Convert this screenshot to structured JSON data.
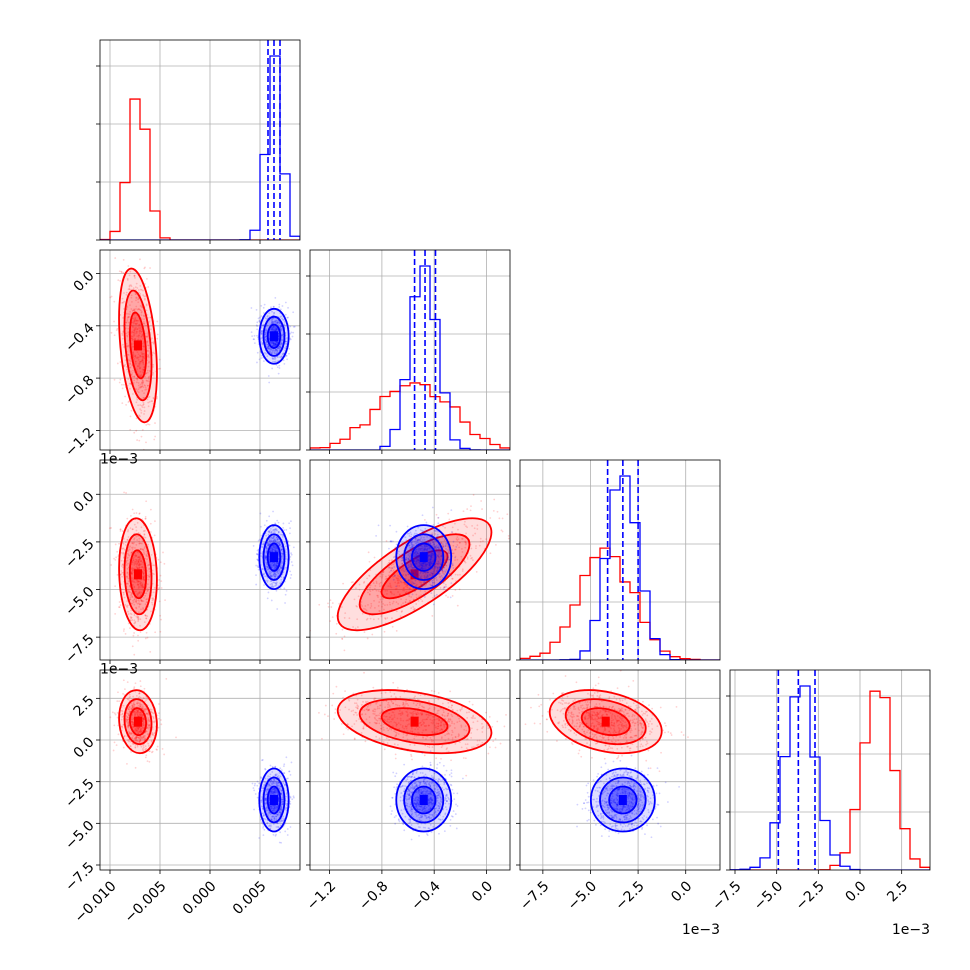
{
  "chart_data": {
    "type": "corner",
    "grid": true,
    "series": [
      {
        "name": "",
        "color": "#ff0000",
        "means": [
          -0.0072,
          -0.00055,
          -0.0042,
          0.0011
        ],
        "sds": [
          0.0009,
          0.00028,
          0.0014,
          0.0009
        ],
        "corr": {
          "1-0": -0.35,
          "2-0": -0.1,
          "2-1": 0.75,
          "3-0": -0.1,
          "3-1": -0.35,
          "3-2": -0.3
        }
      },
      {
        "name": "",
        "color": "#0000ff",
        "means": [
          0.0064,
          -0.00048,
          -0.0033,
          -0.0036
        ],
        "sds": [
          0.0007,
          0.0001,
          0.0008,
          0.0009
        ],
        "corr": {
          "1-0": 0.0,
          "2-0": 0.0,
          "2-1": 0.0,
          "3-0": 0.0,
          "3-1": 0.0,
          "3-2": 0.0
        }
      }
    ],
    "quantile_lines": {
      "color": "#0000ff",
      "values": [
        [
          0.0058,
          0.0064,
          0.007
        ],
        [
          -0.00055,
          -0.00047,
          -0.00039
        ],
        [
          -0.0041,
          -0.0033,
          -0.0025
        ],
        [
          -0.0049,
          -0.0037,
          -0.0027
        ]
      ]
    },
    "axes": [
      {
        "range": [
          -0.011,
          0.009
        ],
        "ticks": [
          -0.01,
          -0.005,
          0.0,
          0.005
        ],
        "tick_labels": [
          "−0.010",
          "−0.005",
          "0.000",
          "0.005"
        ],
        "offset_label": ""
      },
      {
        "range": [
          -0.00135,
          0.00018
        ],
        "ticks": [
          -0.0012,
          -0.0008,
          -0.0004,
          0.0
        ],
        "tick_labels": [
          "−1.2",
          "−0.8",
          "−0.4",
          "0.0"
        ],
        "offset_label": "1e−3"
      },
      {
        "range": [
          -0.0087,
          0.0018
        ],
        "ticks": [
          -0.0075,
          -0.005,
          -0.0025,
          0.0
        ],
        "tick_labels": [
          "−7.5",
          "−5.0",
          "−2.5",
          "0.0"
        ],
        "offset_label": "1e−3"
      },
      {
        "range": [
          -0.0078,
          0.0042
        ],
        "ticks": [
          -0.0075,
          -0.005,
          -0.0025,
          0.0,
          0.0025
        ],
        "tick_labels": [
          "−7.5",
          "−5.0",
          "−2.5",
          "0.0",
          "2.5"
        ],
        "offset_label": "1e−3"
      }
    ],
    "hist_yticks_count": 5,
    "contour_levels": [
      "1-sigma",
      "1.5-sigma",
      "2-sigma"
    ]
  }
}
